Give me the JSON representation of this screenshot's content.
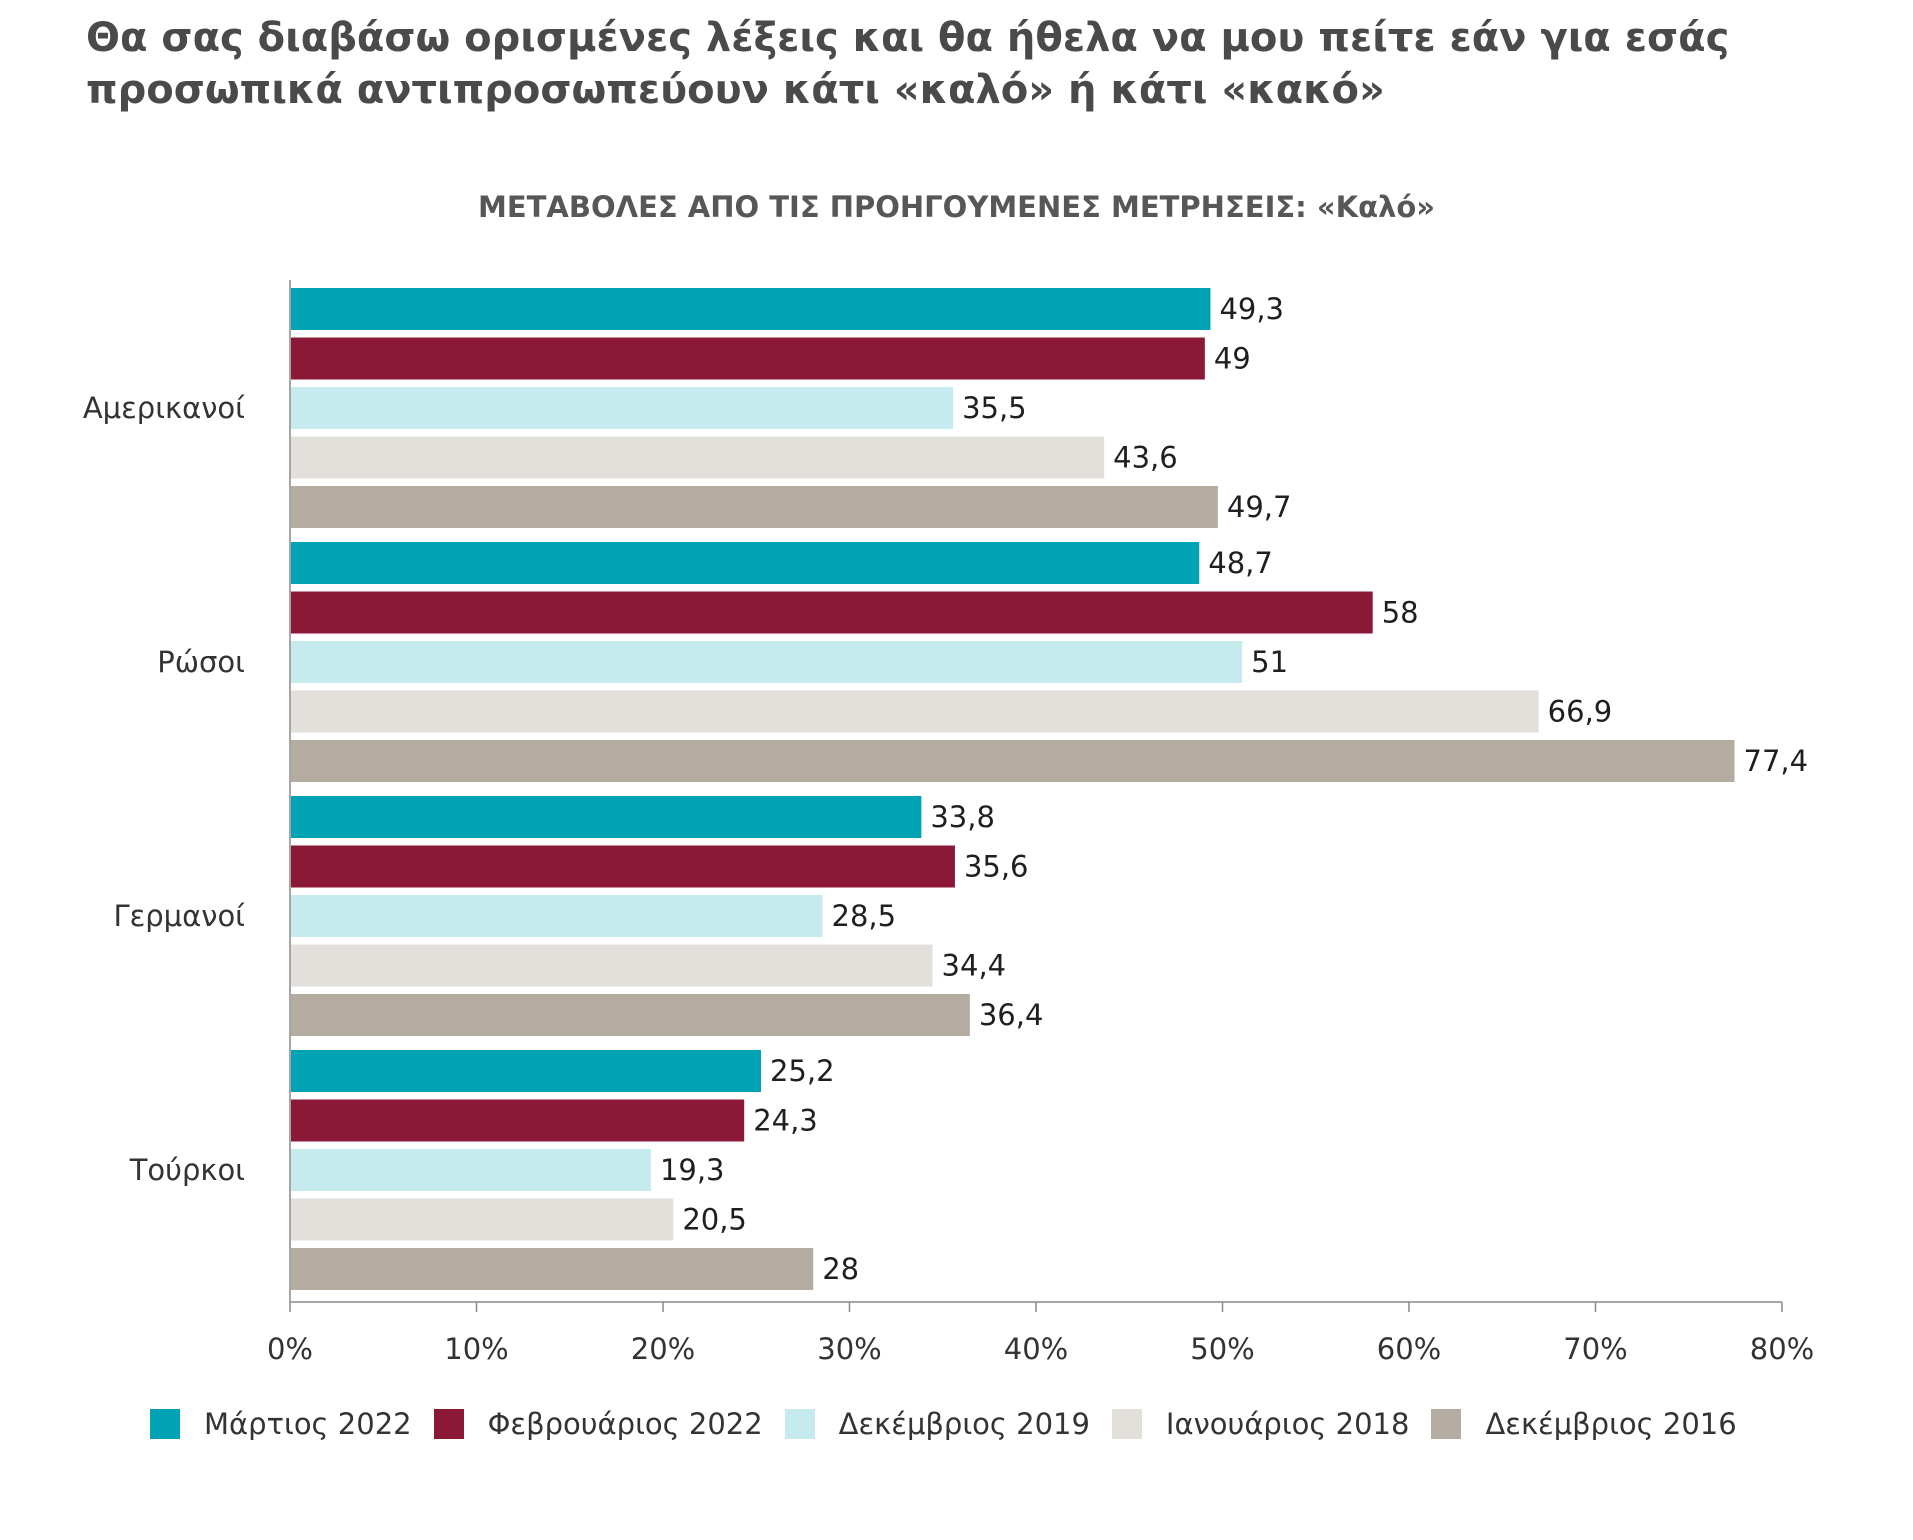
{
  "title_lines": [
    "Θα σας διαβάσω ορισμένες λέξεις και θα ήθελα να μου πείτε εάν για εσάς",
    "προσωπικά αντιπροσωπεύουν κάτι «καλό» ή κάτι «κακό»"
  ],
  "chart_data": {
    "type": "bar",
    "orientation": "horizontal",
    "title": "ΜΕΤΑΒΟΛΕΣ ΑΠΟ ΤΙΣ ΠΡΟΗΓΟΥΜΕΝΕΣ ΜΕΤΡΗΣΕΙΣ: «Καλό»",
    "xlabel": "",
    "ylabel": "",
    "categories": [
      "Αμερικανοί",
      "Ρώσοι",
      "Γερμανοί",
      "Τούρκοι"
    ],
    "series": [
      {
        "name": "Μάρτιος 2022",
        "color": "#00a3b4",
        "values": [
          49.3,
          48.7,
          33.8,
          25.2
        ],
        "labels": [
          "49,3",
          "48,7",
          "33,8",
          "25,2"
        ]
      },
      {
        "name": "Φεβρουάριος 2022",
        "color": "#8c1838",
        "values": [
          49,
          58,
          35.6,
          24.3
        ],
        "labels": [
          "49",
          "58",
          "35,6",
          "24,3"
        ]
      },
      {
        "name": "Δεκέμβριος 2019",
        "color": "#c6ebee",
        "values": [
          35.5,
          51,
          28.5,
          19.3
        ],
        "labels": [
          "35,5",
          "51",
          "28,5",
          "19,3"
        ]
      },
      {
        "name": "Ιανουάριος 2018",
        "color": "#e3dfdb",
        "values": [
          43.6,
          66.9,
          34.4,
          20.5
        ],
        "labels": [
          "43,6",
          "66,9",
          "34,4",
          "20,5"
        ]
      },
      {
        "name": "Δεκέμβριος 2016",
        "color": "#b5aca1",
        "values": [
          49.7,
          77.4,
          36.4,
          28
        ],
        "labels": [
          "49,7",
          "77,4",
          "36,4",
          "28"
        ]
      }
    ],
    "xlim": [
      0,
      80
    ],
    "xticks": [
      0,
      10,
      20,
      30,
      40,
      50,
      60,
      70,
      80
    ],
    "xtick_labels": [
      "0%",
      "10%",
      "20%",
      "30%",
      "40%",
      "50%",
      "60%",
      "70%",
      "80%"
    ],
    "grid": false,
    "legend_position": "bottom"
  }
}
